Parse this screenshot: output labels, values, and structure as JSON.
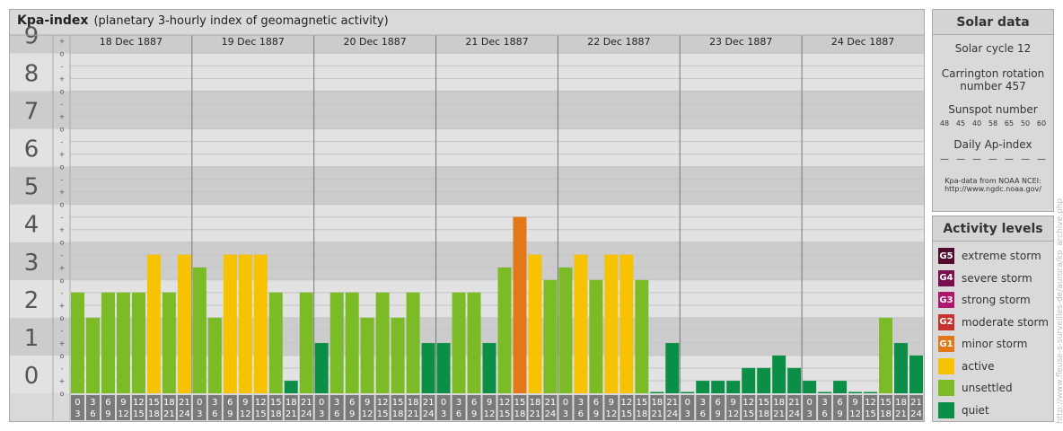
{
  "title": {
    "name": "Kpa-index",
    "subtitle": "(planetary 3-hourly index of geomagnetic activity)"
  },
  "chart_data": {
    "type": "bar",
    "title": "Kpa-index",
    "subtitle": "(planetary 3-hourly index of geomagnetic activity)",
    "days": [
      "18 Dec 1887",
      "19 Dec 1887",
      "20 Dec 1887",
      "21 Dec 1887",
      "22 Dec 1887",
      "23 Dec 1887",
      "24 Dec 1887"
    ],
    "interval_labels": [
      [
        "0",
        "3"
      ],
      [
        "3",
        "6"
      ],
      [
        "6",
        "9"
      ],
      [
        "9",
        "12"
      ],
      [
        "12",
        "15"
      ],
      [
        "15",
        "18"
      ],
      [
        "18",
        "21"
      ],
      [
        "21",
        "24"
      ]
    ],
    "ylim": [
      0,
      9.5
    ],
    "y_major_ticks": [
      "0",
      "1",
      "2",
      "3",
      "4",
      "5",
      "6",
      "7",
      "8",
      "9"
    ],
    "y_minor_marks": [
      "o",
      "+",
      "-"
    ],
    "values": [
      [
        2.67,
        2.0,
        2.67,
        2.67,
        2.67,
        3.67,
        2.67,
        3.67
      ],
      [
        3.33,
        2.0,
        3.67,
        3.67,
        3.67,
        2.67,
        0.33,
        2.67
      ],
      [
        1.33,
        2.67,
        2.67,
        2.0,
        2.67,
        2.0,
        2.67,
        1.33
      ],
      [
        1.33,
        2.67,
        2.67,
        1.33,
        3.33,
        4.67,
        3.67,
        3.0
      ],
      [
        3.33,
        3.67,
        3.0,
        3.67,
        3.67,
        3.0,
        0.0,
        1.33
      ],
      [
        0.0,
        0.33,
        0.33,
        0.33,
        0.67,
        0.67,
        1.0,
        0.67
      ],
      [
        0.33,
        0.0,
        0.33,
        0.0,
        0.0,
        2.0,
        1.33,
        1.0
      ]
    ],
    "colors": {
      "quiet": "#0b8f47",
      "unsettled": "#7abb26",
      "active": "#f7c200",
      "G1": "#e27818"
    },
    "grid": true,
    "legend": "right"
  },
  "solar": {
    "title": "Solar data",
    "cycle": "Solar cycle 12",
    "carrington_l1": "Carrington rotation",
    "carrington_l2": "number 457",
    "sunspot_label": "Sunspot number",
    "sunspots": [
      "48",
      "45",
      "40",
      "58",
      "65",
      "50",
      "60"
    ],
    "ap_label": "Daily Ap-index",
    "ap_values": [
      "—",
      "—",
      "—",
      "—",
      "—",
      "—",
      "—"
    ],
    "source_l1": "Kpa-data from NOAA NCEI:",
    "source_l2": "http://www.ngdc.noaa.gov/"
  },
  "activity": {
    "title": "Activity levels",
    "items": [
      {
        "badge": "G5",
        "label": "extreme storm",
        "color": "#520a2e"
      },
      {
        "badge": "G4",
        "label": "severe storm",
        "color": "#7a0d4e"
      },
      {
        "badge": "G3",
        "label": "strong storm",
        "color": "#b0166e"
      },
      {
        "badge": "G2",
        "label": "moderate storm",
        "color": "#c8322e"
      },
      {
        "badge": "G1",
        "label": "minor storm",
        "color": "#e27818"
      },
      {
        "badge": "",
        "label": "active",
        "color": "#f7c200"
      },
      {
        "badge": "",
        "label": "unsettled",
        "color": "#7abb26"
      },
      {
        "badge": "",
        "label": "quiet",
        "color": "#0b8f47"
      }
    ]
  },
  "credit": "http://www.fleuse-s-surveilles-de/aurora/kp_archive.php"
}
